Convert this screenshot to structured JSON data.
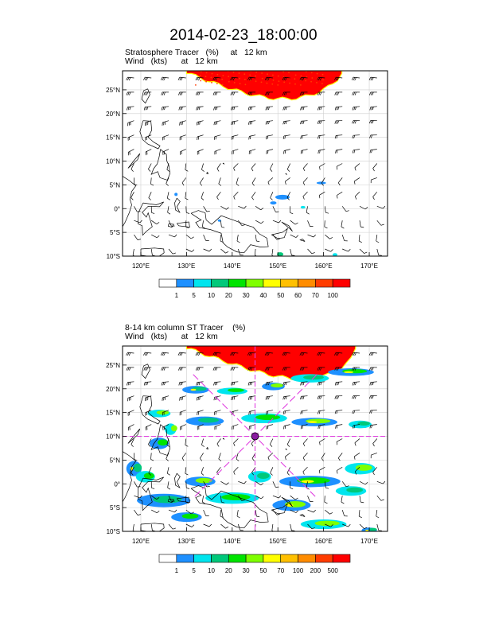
{
  "page": {
    "title": "2014-02-23_18:00:00"
  },
  "colors": {
    "frame": "#000000",
    "grid": "#cfcfcf",
    "coast": "#000000",
    "wind": "#000000",
    "guide": "#e040e0",
    "marker": "#8a1ca0"
  },
  "chart_data": [
    {
      "type": "heatmap",
      "title": "Stratosphere Tracer   (%)     at   12 km",
      "subtitle": "Wind   (kts)      at   12 km",
      "xlabel": "",
      "ylabel": "",
      "xlim": [
        116,
        174
      ],
      "ylim": [
        -10,
        29
      ],
      "x_ticks": [
        120,
        130,
        140,
        150,
        160,
        170
      ],
      "x_tick_labels": [
        "120°E",
        "130°E",
        "140°E",
        "150°E",
        "160°E",
        "170°E"
      ],
      "y_ticks": [
        -10,
        -5,
        0,
        5,
        10,
        15,
        20,
        25
      ],
      "y_tick_labels": [
        "10°S",
        "5°S",
        "0°",
        "5°N",
        "10°N",
        "15°N",
        "20°N",
        "25°N"
      ],
      "grid": true,
      "colorbar": {
        "levels": [
          "1",
          "5",
          "10",
          "20",
          "30",
          "40",
          "50",
          "60",
          "70",
          "100"
        ],
        "colors": [
          "#ffffff",
          "#1e90ff",
          "#00e5ee",
          "#00c87a",
          "#00e400",
          "#7fff00",
          "#ffff00",
          "#ffc000",
          "#ff8c00",
          "#ff3c00",
          "#ff0000"
        ]
      },
      "features": [
        {
          "name": "stratospheric intrusion",
          "value_pct": 100,
          "lon_range": [
            130,
            164
          ],
          "lat_range": [
            22,
            29
          ]
        },
        {
          "name": "small patch",
          "value_pct": 5,
          "lon": 155,
          "lat": 2
        },
        {
          "name": "small patch",
          "value_pct": 10,
          "lon": 150,
          "lat": -10
        },
        {
          "name": "small patch",
          "value_pct": 10,
          "lon": 163,
          "lat": -10
        }
      ]
    },
    {
      "type": "heatmap",
      "title": "8-14 km column ST Tracer    (%)",
      "subtitle": "Wind   (kts)      at   12 km",
      "xlabel": "",
      "ylabel": "",
      "xlim": [
        116,
        174
      ],
      "ylim": [
        -10,
        29
      ],
      "x_ticks": [
        120,
        130,
        140,
        150,
        160,
        170
      ],
      "x_tick_labels": [
        "120°E",
        "130°E",
        "140°E",
        "150°E",
        "160°E",
        "170°E"
      ],
      "y_ticks": [
        -10,
        -5,
        0,
        5,
        10,
        15,
        20,
        25
      ],
      "y_tick_labels": [
        "10°S",
        "5°S",
        "0°",
        "5°N",
        "10°N",
        "15°N",
        "20°N",
        "25°N"
      ],
      "grid": true,
      "colorbar": {
        "levels": [
          "1",
          "5",
          "10",
          "20",
          "30",
          "50",
          "70",
          "100",
          "200",
          "500"
        ],
        "colors": [
          "#ffffff",
          "#1e90ff",
          "#00e5ee",
          "#00c87a",
          "#00e400",
          "#7fff00",
          "#ffff00",
          "#ffc000",
          "#ff8c00",
          "#ff3c00",
          "#ff0000"
        ]
      },
      "features": [
        {
          "name": "stratospheric intrusion",
          "value_pct": 500,
          "lon_range": [
            130,
            167
          ],
          "lat_range": [
            22,
            29
          ]
        },
        {
          "name": "center marker",
          "lon": 145,
          "lat": 10
        },
        {
          "name": "guide line",
          "kind": "parallel",
          "lat": 10
        },
        {
          "name": "guide line",
          "kind": "meridian",
          "lon": 145
        }
      ]
    }
  ]
}
